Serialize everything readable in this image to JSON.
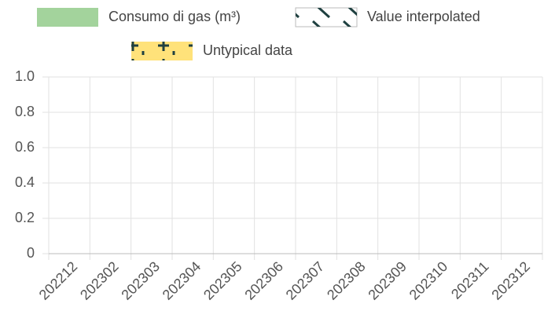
{
  "chart_data": {
    "type": "bar",
    "legend": [
      {
        "name": "Consumo di gas (m³)",
        "color": "#a3d39c"
      },
      {
        "name": "Value interpolated",
        "color": "#1f4040"
      },
      {
        "name": "Untypical data",
        "color": "#ffe27a"
      }
    ],
    "categories": [
      "202212",
      "202302",
      "202303",
      "202304",
      "202305",
      "202306",
      "202307",
      "202308",
      "202309",
      "202310",
      "202311",
      "202312"
    ],
    "series": [
      {
        "name": "Consumo di gas (m³)",
        "color": "#a3d39c",
        "values": [
          0,
          0,
          0,
          0,
          0,
          0,
          0,
          0,
          0,
          0,
          0,
          0
        ]
      }
    ],
    "ylim": [
      0,
      1
    ],
    "yticks": [
      0,
      0.2,
      0.4,
      0.6,
      0.8,
      {
        "value": 1,
        "label": "1.0"
      }
    ],
    "grid": true
  }
}
